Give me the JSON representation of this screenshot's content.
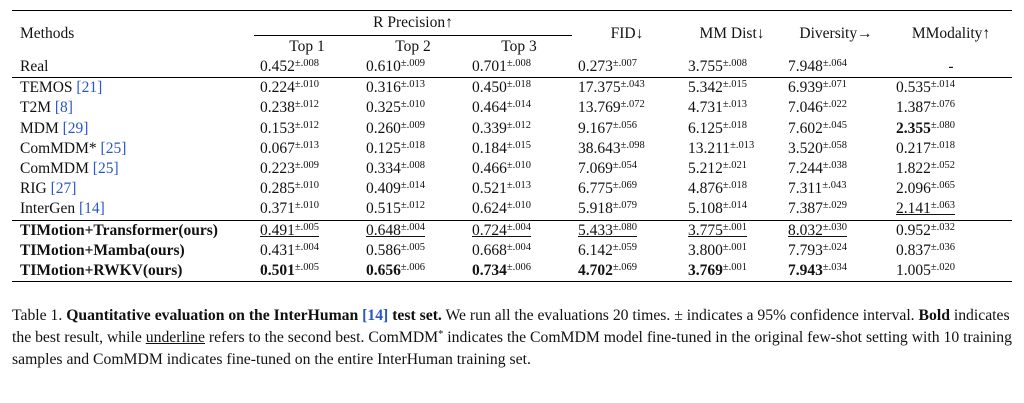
{
  "table": {
    "header": {
      "methods": "Methods",
      "r_precision": "R Precision↑",
      "top1": "Top 1",
      "top2": "Top 2",
      "top3": "Top 3",
      "fid": "FID↓",
      "mm_dist": "MM Dist↓",
      "diversity": "Diversity→",
      "mmodality": "MModality↑"
    },
    "rows": [
      {
        "method": "Real",
        "cite": "",
        "cells": [
          {
            "v": "0.452",
            "e": "±.008"
          },
          {
            "v": "0.610",
            "e": "±.009"
          },
          {
            "v": "0.701",
            "e": "±.008"
          },
          {
            "v": "0.273",
            "e": "±.007"
          },
          {
            "v": "3.755",
            "e": "±.008"
          },
          {
            "v": "7.948",
            "e": "±.064"
          },
          {
            "v": "-",
            "e": ""
          }
        ]
      },
      {
        "method": "TEMOS ",
        "cite": "[21]",
        "cells": [
          {
            "v": "0.224",
            "e": "±.010"
          },
          {
            "v": "0.316",
            "e": "±.013"
          },
          {
            "v": "0.450",
            "e": "±.018"
          },
          {
            "v": "17.375",
            "e": "±.043"
          },
          {
            "v": "5.342",
            "e": "±.015"
          },
          {
            "v": "6.939",
            "e": "±.071"
          },
          {
            "v": "0.535",
            "e": "±.014"
          }
        ]
      },
      {
        "method": "T2M ",
        "cite": "[8]",
        "cells": [
          {
            "v": "0.238",
            "e": "±.012"
          },
          {
            "v": "0.325",
            "e": "±.010"
          },
          {
            "v": "0.464",
            "e": "±.014"
          },
          {
            "v": "13.769",
            "e": "±.072"
          },
          {
            "v": "4.731",
            "e": "±.013"
          },
          {
            "v": "7.046",
            "e": "±.022"
          },
          {
            "v": "1.387",
            "e": "±.076"
          }
        ]
      },
      {
        "method": "MDM ",
        "cite": "[29]",
        "cells": [
          {
            "v": "0.153",
            "e": "±.012"
          },
          {
            "v": "0.260",
            "e": "±.009"
          },
          {
            "v": "0.339",
            "e": "±.012"
          },
          {
            "v": "9.167",
            "e": "±.056"
          },
          {
            "v": "6.125",
            "e": "±.018"
          },
          {
            "v": "7.602",
            "e": "±.045"
          },
          {
            "v": "2.355",
            "e": "±.080",
            "bold": true
          }
        ]
      },
      {
        "method": "ComMDM* ",
        "cite": "[25]",
        "cells": [
          {
            "v": "0.067",
            "e": "±.013"
          },
          {
            "v": "0.125",
            "e": "±.018"
          },
          {
            "v": "0.184",
            "e": "±.015"
          },
          {
            "v": "38.643",
            "e": "±.098"
          },
          {
            "v": "13.211",
            "e": "±.013"
          },
          {
            "v": "3.520",
            "e": "±.058"
          },
          {
            "v": "0.217",
            "e": "±.018"
          }
        ]
      },
      {
        "method": "ComMDM ",
        "cite": "[25]",
        "cells": [
          {
            "v": "0.223",
            "e": "±.009"
          },
          {
            "v": "0.334",
            "e": "±.008"
          },
          {
            "v": "0.466",
            "e": "±.010"
          },
          {
            "v": "7.069",
            "e": "±.054"
          },
          {
            "v": "5.212",
            "e": "±.021"
          },
          {
            "v": "7.244",
            "e": "±.038"
          },
          {
            "v": "1.822",
            "e": "±.052"
          }
        ]
      },
      {
        "method": "RIG ",
        "cite": "[27]",
        "cells": [
          {
            "v": "0.285",
            "e": "±.010"
          },
          {
            "v": "0.409",
            "e": "±.014"
          },
          {
            "v": "0.521",
            "e": "±.013"
          },
          {
            "v": "6.775",
            "e": "±.069"
          },
          {
            "v": "4.876",
            "e": "±.018"
          },
          {
            "v": "7.311",
            "e": "±.043"
          },
          {
            "v": "2.096",
            "e": "±.065"
          }
        ]
      },
      {
        "method": "InterGen ",
        "cite": "[14]",
        "cells": [
          {
            "v": "0.371",
            "e": "±.010"
          },
          {
            "v": "0.515",
            "e": "±.012"
          },
          {
            "v": "0.624",
            "e": "±.010"
          },
          {
            "v": "5.918",
            "e": "±.079"
          },
          {
            "v": "5.108",
            "e": "±.014"
          },
          {
            "v": "7.387",
            "e": "±.029"
          },
          {
            "v": "2.141",
            "e": "±.063",
            "under": true
          }
        ]
      },
      {
        "method": "TIMotion+Transformer(ours)",
        "cite": "",
        "bold_method": true,
        "cells": [
          {
            "v": "0.491",
            "e": "±.005",
            "under": true
          },
          {
            "v": "0.648",
            "e": "±.004",
            "under": true
          },
          {
            "v": "0.724",
            "e": "±.004",
            "under": true
          },
          {
            "v": "5.433",
            "e": "±.080",
            "under": true
          },
          {
            "v": "3.775",
            "e": "±.001",
            "under": true
          },
          {
            "v": "8.032",
            "e": "±.030",
            "under": true
          },
          {
            "v": "0.952",
            "e": "±.032"
          }
        ]
      },
      {
        "method": "TIMotion+Mamba(ours)",
        "cite": "",
        "bold_method": true,
        "cells": [
          {
            "v": "0.431",
            "e": "±.004"
          },
          {
            "v": "0.586",
            "e": "±.005"
          },
          {
            "v": "0.668",
            "e": "±.004"
          },
          {
            "v": "6.142",
            "e": "±.059"
          },
          {
            "v": "3.800",
            "e": "±.001"
          },
          {
            "v": "7.793",
            "e": "±.024"
          },
          {
            "v": "0.837",
            "e": "±.036"
          }
        ]
      },
      {
        "method": "TIMotion+RWKV(ours)",
        "cite": "",
        "bold_method": true,
        "cells": [
          {
            "v": "0.501",
            "e": "±.005",
            "bold": true
          },
          {
            "v": "0.656",
            "e": "±.006",
            "bold": true
          },
          {
            "v": "0.734",
            "e": "±.006",
            "bold": true
          },
          {
            "v": "4.702",
            "e": "±.069",
            "bold": true
          },
          {
            "v": "3.769",
            "e": "±.001",
            "bold": true
          },
          {
            "v": "7.943",
            "e": "±.034",
            "bold": true
          },
          {
            "v": "1.005",
            "e": "±.020"
          }
        ]
      }
    ]
  },
  "caption": {
    "label": "Table 1.",
    "title_a": "Quantitative evaluation on the InterHuman ",
    "title_cite": "[14]",
    "title_b": " test set.",
    "s1": " We run all the evaluations 20 times. ± indicates a 95% confidence interval. ",
    "bold_word": "Bold",
    "s2": " indicates the best result, while ",
    "underline_word": "underline",
    "s3": " refers to the second best. ComMDM",
    "star": "*",
    "s4": " indicates the ComMDM model fine-tuned in the original few-shot setting with 10 training samples and ComMDM indicates fine-tuned on the entire InterHuman training set."
  }
}
